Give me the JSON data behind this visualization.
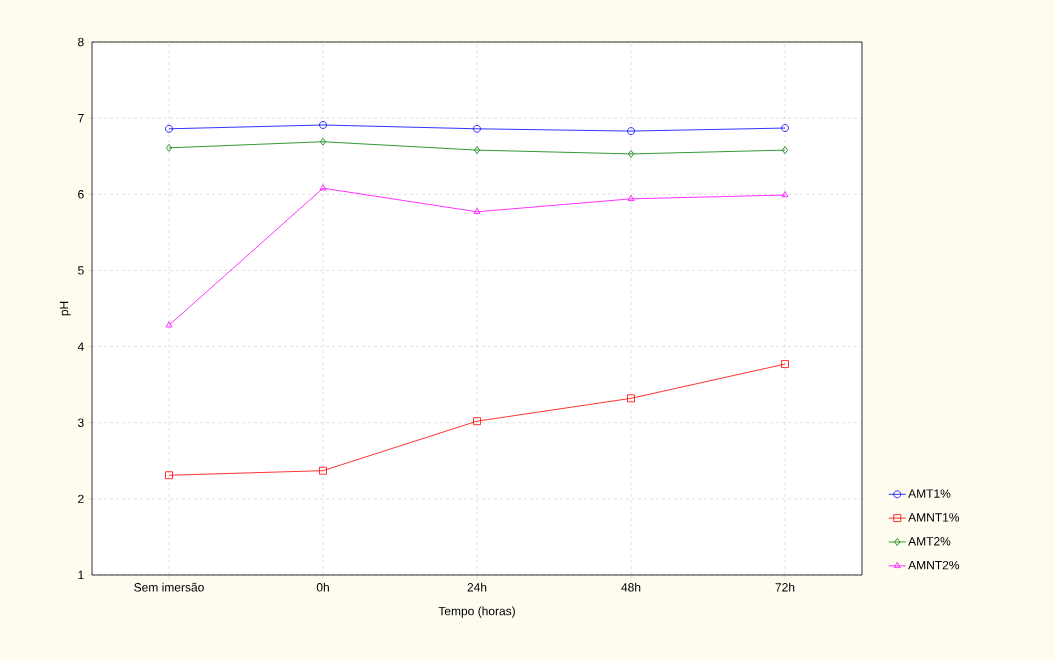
{
  "chart_data": {
    "type": "line",
    "xlabel": "Tempo (horas)",
    "ylabel": "pH",
    "categories": [
      "Sem imersão",
      "0h",
      "24h",
      "48h",
      "72h"
    ],
    "series": [
      {
        "name": "AMT1%",
        "color": "#0000ff",
        "marker": "circle",
        "values": [
          6.86,
          6.91,
          6.86,
          6.83,
          6.87
        ]
      },
      {
        "name": "AMNT1%",
        "color": "#ff0000",
        "marker": "square",
        "values": [
          2.31,
          2.37,
          3.02,
          3.32,
          3.77
        ]
      },
      {
        "name": "AMT2%",
        "color": "#008000",
        "marker": "diamond",
        "values": [
          6.61,
          6.69,
          6.58,
          6.53,
          6.58
        ]
      },
      {
        "name": "AMNT2%",
        "color": "#ff00ff",
        "marker": "triangle",
        "values": [
          4.28,
          6.08,
          5.77,
          5.94,
          5.99
        ]
      }
    ],
    "ylim": [
      1,
      8
    ],
    "yticks": [
      1,
      2,
      3,
      4,
      5,
      6,
      7,
      8
    ],
    "grid": true,
    "legend": "right",
    "line_style": "solid"
  }
}
